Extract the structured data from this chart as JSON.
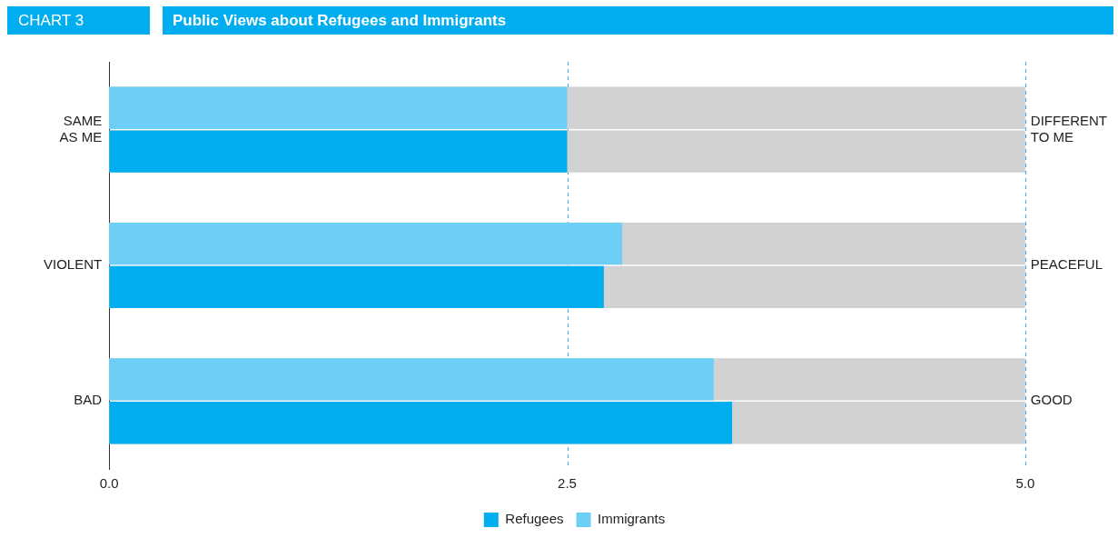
{
  "chart_data": {
    "type": "bar",
    "orientation": "horizontal",
    "title": "Public Views about Refugees and Immigrants",
    "annotations": [
      "CHART 3"
    ],
    "categories": [
      "SAME AS ME",
      "VIOLENT",
      "BAD"
    ],
    "y2_categories": [
      "DIFFERENT TO ME",
      "PEACEFUL",
      "GOOD"
    ],
    "series": [
      {
        "name": "Immigrants",
        "color": "#6dcff6",
        "values": [
          2.5,
          2.8,
          3.3
        ]
      },
      {
        "name": "Refugees",
        "color": "#00aeef",
        "values": [
          2.5,
          2.7,
          3.4
        ]
      }
    ],
    "xlim": [
      0,
      5
    ],
    "xticks": [
      {
        "value": 0,
        "label": "0.0"
      },
      {
        "value": 2.5,
        "label": "2.5"
      },
      {
        "value": 5,
        "label": "5.0"
      }
    ],
    "ref_lines": [
      {
        "axis": "x",
        "value": 2.5,
        "color": "#29abe2",
        "line_style": "dashed"
      },
      {
        "axis": "x",
        "value": 5,
        "color": "#29abe2",
        "line_style": "dashed"
      }
    ],
    "legend": "bottom"
  }
}
